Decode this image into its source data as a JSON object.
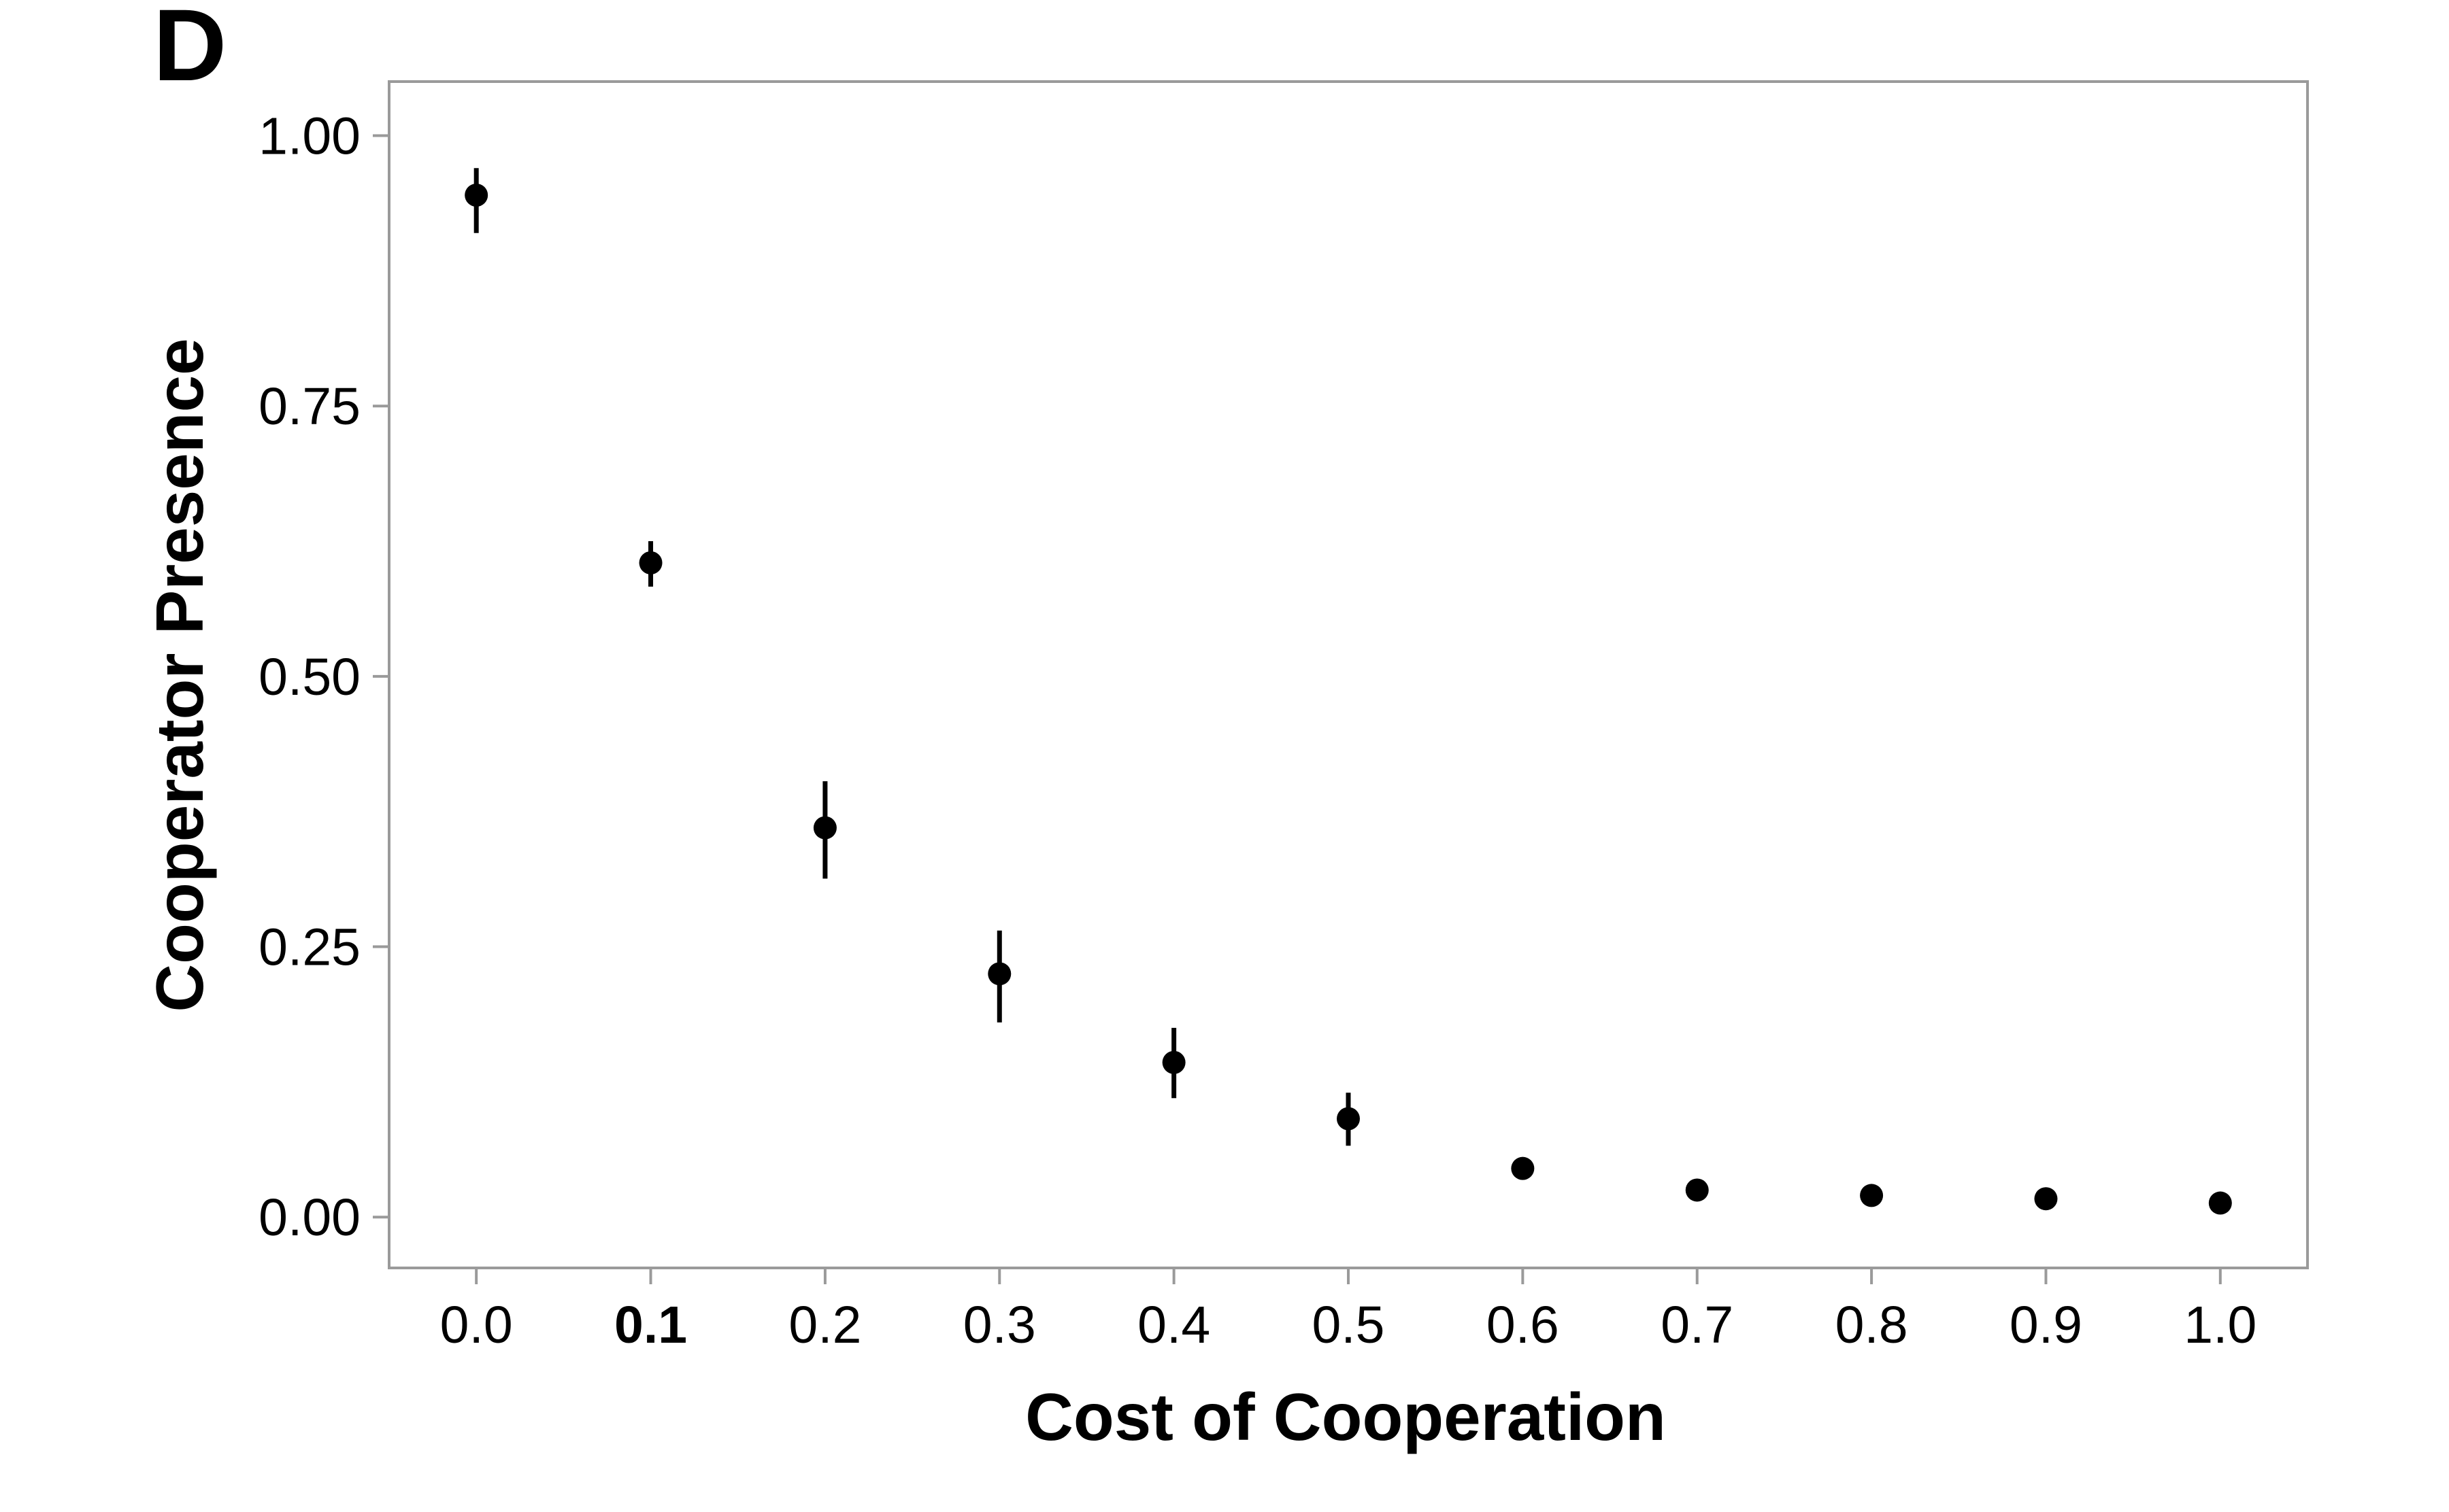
{
  "panel_label": "D",
  "chart_data": {
    "type": "scatter",
    "xlabel": "Cost of Cooperation",
    "ylabel": "Cooperator Presence",
    "x": [
      0.0,
      0.1,
      0.2,
      0.3,
      0.4,
      0.5,
      0.6,
      0.7,
      0.8,
      0.9,
      1.0
    ],
    "y": [
      0.945,
      0.605,
      0.36,
      0.225,
      0.143,
      0.091,
      0.045,
      0.025,
      0.02,
      0.017,
      0.013
    ],
    "err_low": [
      0.91,
      0.583,
      0.313,
      0.18,
      0.11,
      0.066,
      null,
      null,
      null,
      null,
      null
    ],
    "err_high": [
      0.97,
      0.625,
      0.403,
      0.265,
      0.175,
      0.115,
      null,
      null,
      null,
      null,
      null
    ],
    "x_ticks": [
      "0.0",
      "0.1",
      "0.2",
      "0.3",
      "0.4",
      "0.5",
      "0.6",
      "0.7",
      "0.8",
      "0.9",
      "1.0"
    ],
    "x_tick_bold": "0.1",
    "y_ticks": [
      "0.00",
      "0.25",
      "0.50",
      "0.75",
      "1.00"
    ],
    "xlim": [
      -0.05,
      1.05
    ],
    "ylim": [
      -0.047,
      1.05
    ],
    "grid": false,
    "colors": {
      "points": "#000000",
      "frame": "#9a9a9a"
    }
  }
}
